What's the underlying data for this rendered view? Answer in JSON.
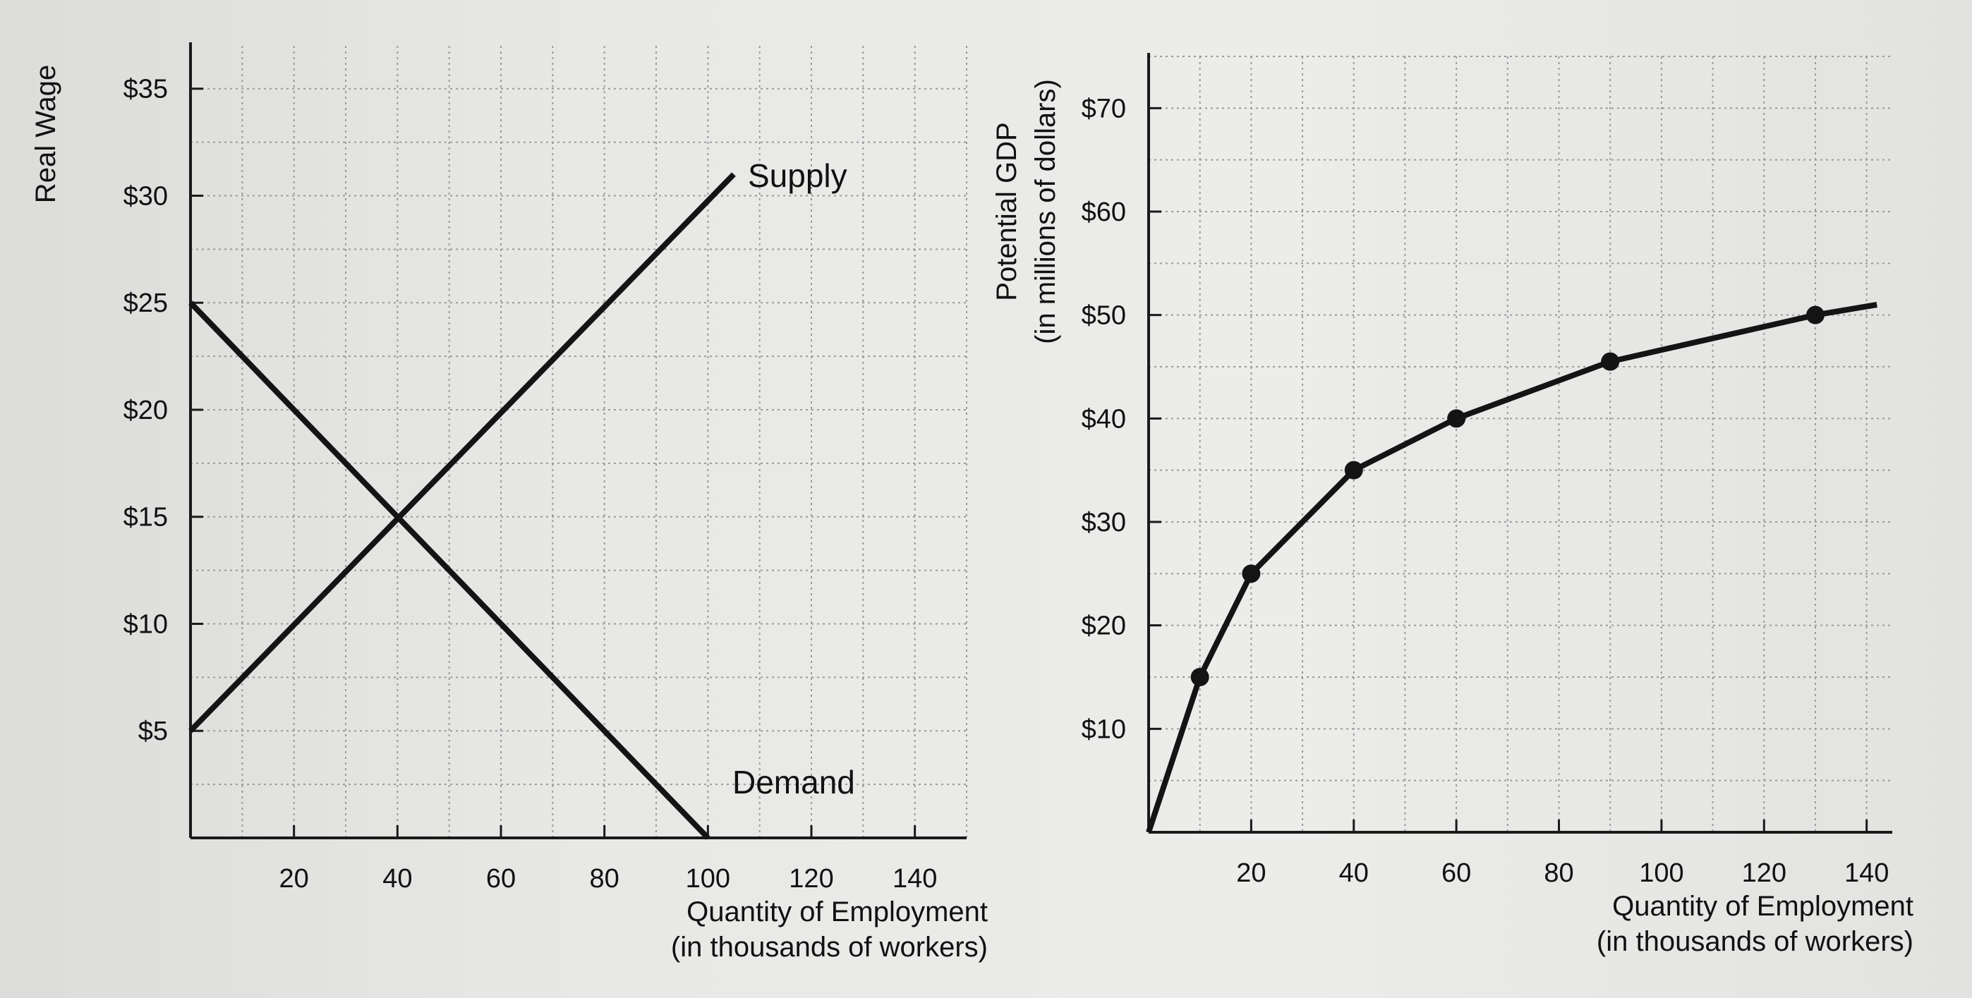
{
  "chart_data": [
    {
      "type": "line",
      "title": "",
      "ylabel": "Real Wage",
      "xlabel": [
        "Quantity of Employment",
        "(in thousands of workers)"
      ],
      "x_ticks": [
        "20",
        "40",
        "60",
        "80",
        "100",
        "120",
        "140"
      ],
      "y_ticks": [
        "$5",
        "$10",
        "$15",
        "$20",
        "$25",
        "$30",
        "$35"
      ],
      "xlim": [
        0,
        150
      ],
      "ylim": [
        0,
        37
      ],
      "grid": true,
      "series": [
        {
          "name": "Supply",
          "x": [
            0,
            105
          ],
          "y": [
            5,
            31
          ]
        },
        {
          "name": "Demand",
          "x": [
            0,
            100
          ],
          "y": [
            25,
            0
          ]
        }
      ]
    },
    {
      "type": "line",
      "title": "",
      "ylabel": [
        "Potential GDP",
        "(in millions of dollars)"
      ],
      "xlabel": [
        "Quantity of Employment",
        "(in thousands of workers)"
      ],
      "x_ticks": [
        "20",
        "40",
        "60",
        "80",
        "100",
        "120",
        "140"
      ],
      "y_ticks": [
        "$10",
        "$20",
        "$30",
        "$40",
        "$50",
        "$60",
        "$70"
      ],
      "xlim": [
        0,
        145
      ],
      "ylim": [
        0,
        75
      ],
      "grid": true,
      "series": [
        {
          "x": [
            0,
            10,
            20,
            40,
            60,
            90,
            130,
            142
          ],
          "y": [
            0,
            15,
            25,
            35,
            40,
            45.5,
            50,
            51
          ],
          "markers": [
            false,
            true,
            true,
            true,
            true,
            true,
            true,
            false
          ]
        }
      ]
    }
  ]
}
